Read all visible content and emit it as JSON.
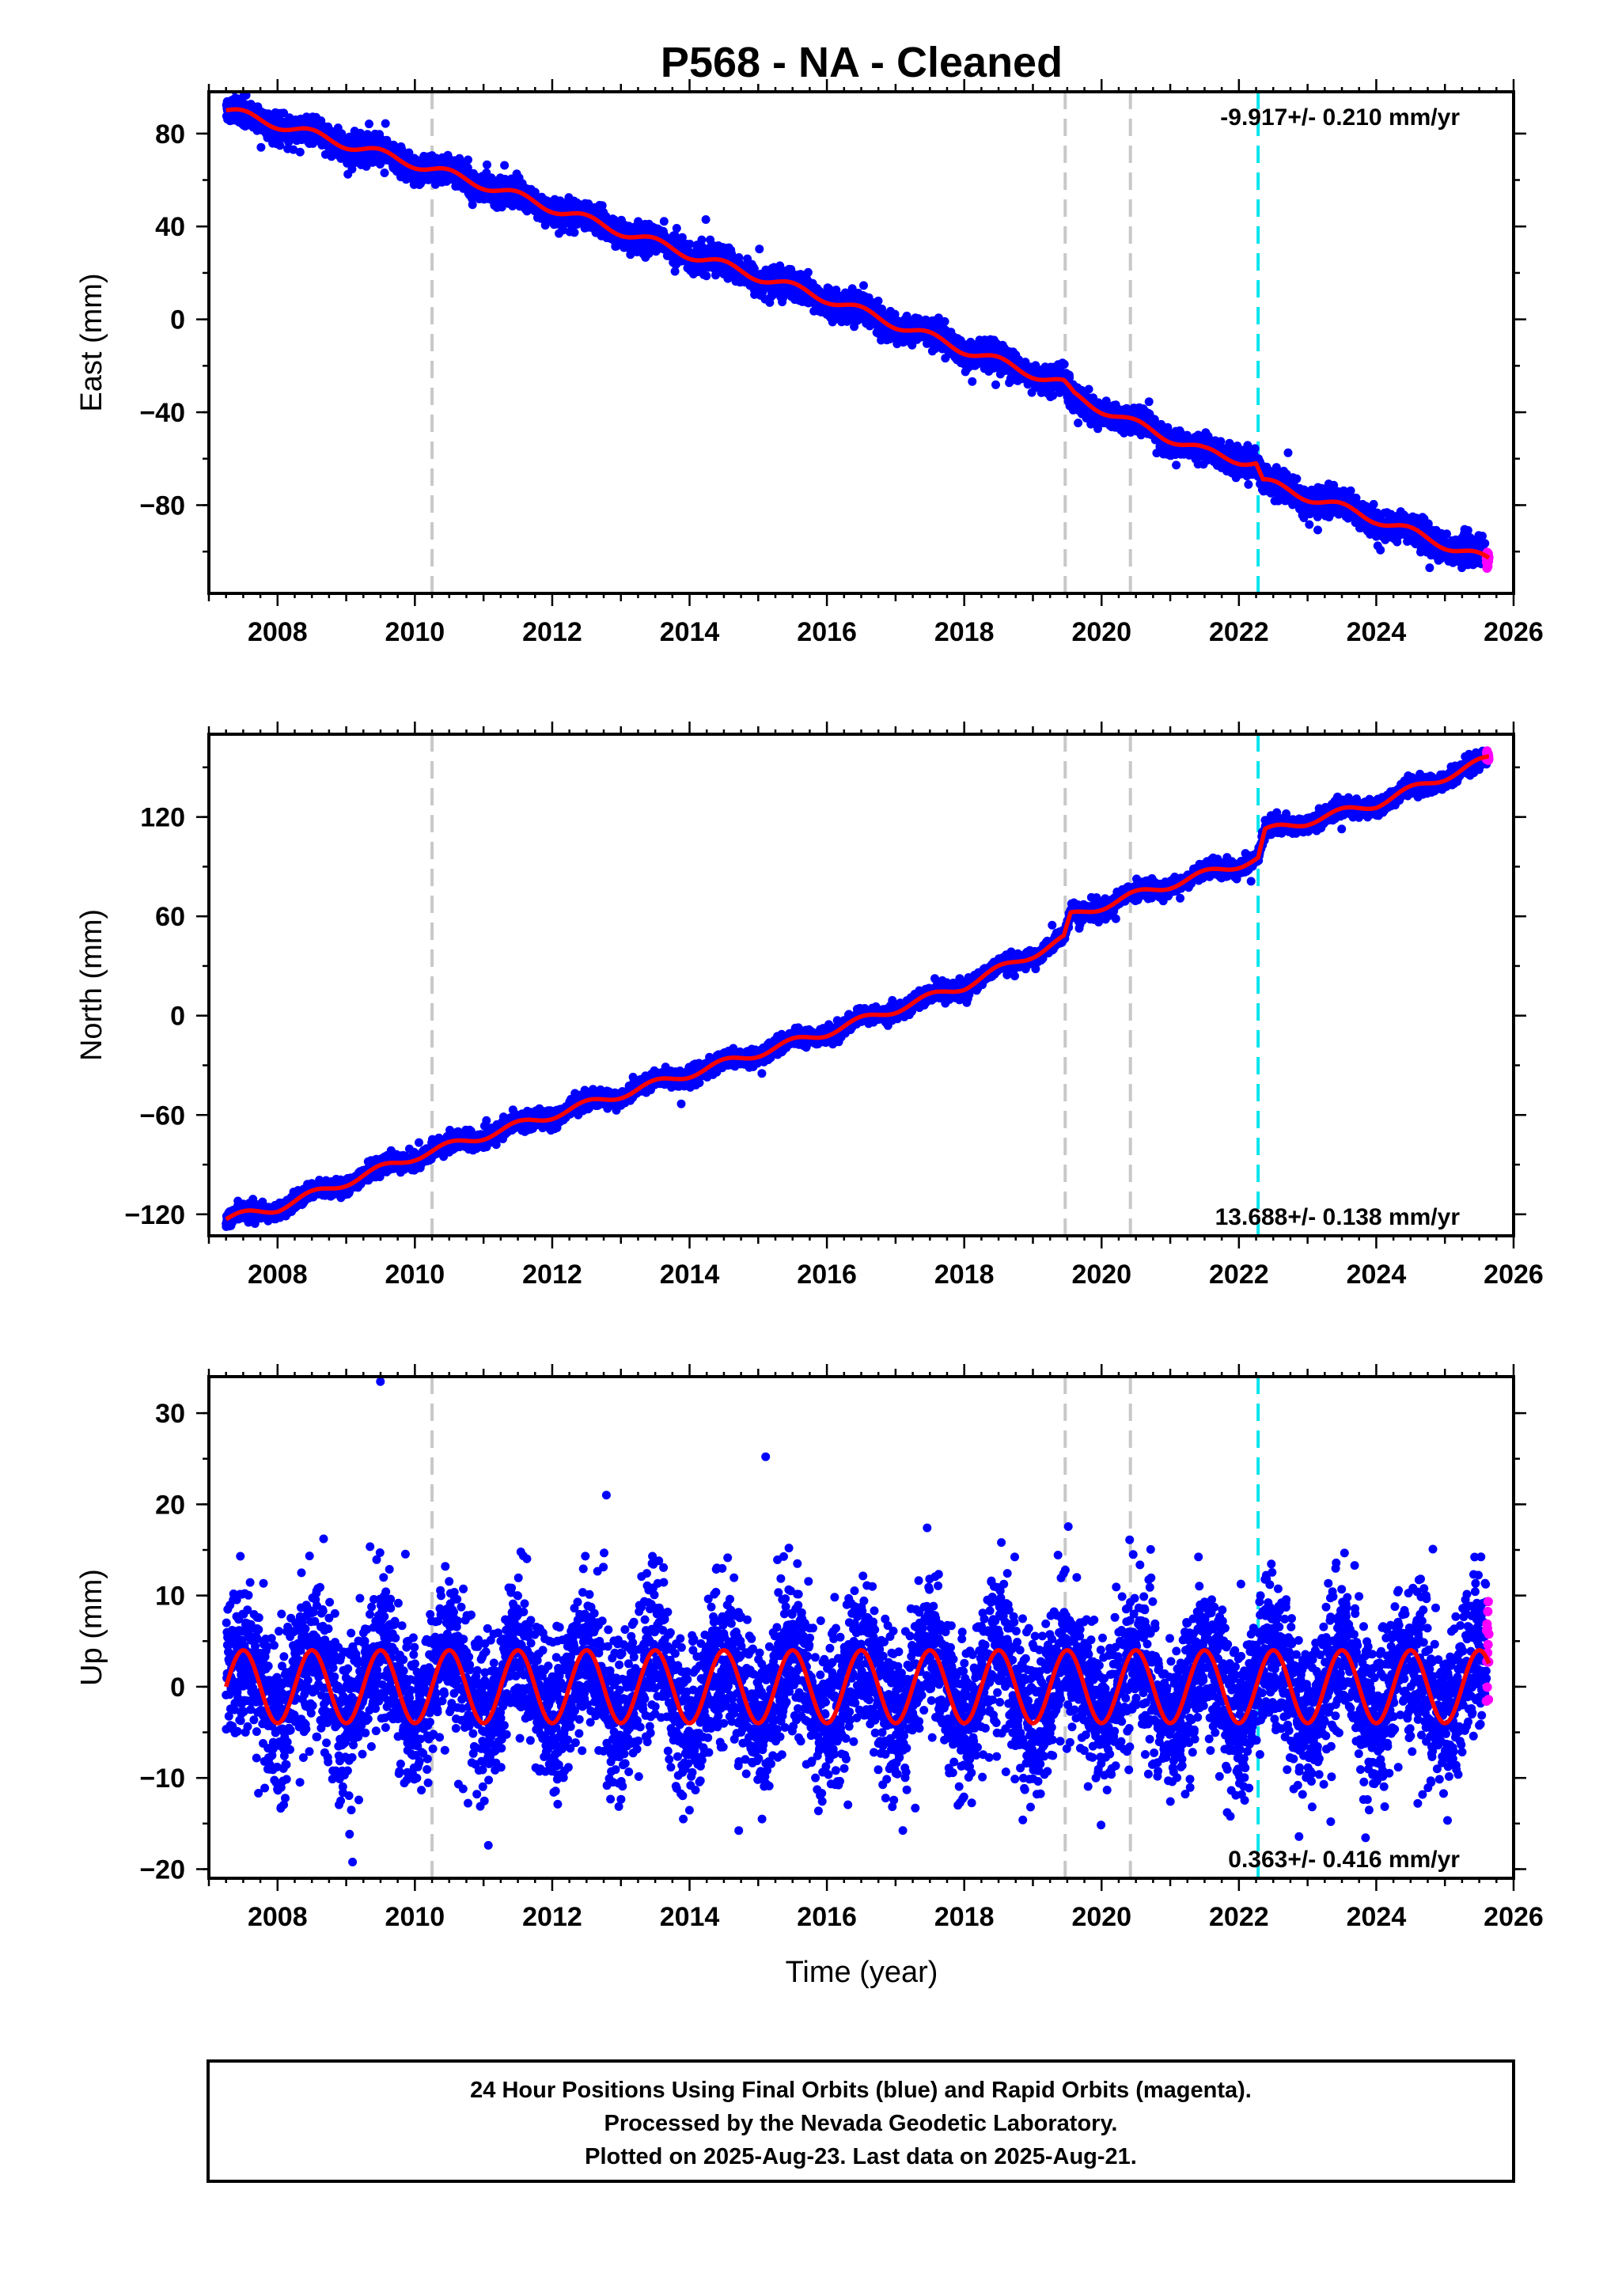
{
  "title": "P568  - NA - Cleaned",
  "xlabel": "Time (year)",
  "footer": {
    "line1": "24 Hour Positions Using Final Orbits (blue) and Rapid Orbits (magenta).",
    "line2": "Processed by the Nevada Geodetic Laboratory.",
    "line3": "Plotted on 2025-Aug-23. Last data on 2025-Aug-21."
  },
  "colors": {
    "final_orbits": "#0000ff",
    "rapid_orbits": "#ff00ff",
    "model": "#ff0000",
    "equipment_change": "#c8c8c8",
    "earthquake": "#00e5ee"
  },
  "chart_data": [
    {
      "type": "scatter",
      "component": "east",
      "ylabel": "East (mm)",
      "xlim": [
        2007.0,
        2026.0
      ],
      "ylim": [
        -118,
        98
      ],
      "x_ticks": [
        2008,
        2010,
        2012,
        2014,
        2016,
        2018,
        2020,
        2022,
        2024,
        2026
      ],
      "y_ticks": [
        80,
        40,
        0,
        -40,
        -80
      ],
      "y_tick_labels": [
        "80",
        "40",
        "0",
        "−40",
        "−80"
      ],
      "rate_label": "-9.917+/- 0.210 mm/yr",
      "rate_position": "top-right",
      "data_start": 2007.25,
      "data_end": 2025.64,
      "trend_points": [
        [
          2007.25,
          90
        ],
        [
          2008.0,
          84
        ],
        [
          2010.0,
          67
        ],
        [
          2011.0,
          58
        ],
        [
          2012.0,
          48
        ],
        [
          2014.0,
          28
        ],
        [
          2016.0,
          9
        ],
        [
          2018.0,
          -13
        ],
        [
          2019.45,
          -28
        ],
        [
          2019.6,
          -33
        ],
        [
          2020.4,
          -44
        ],
        [
          2021.5,
          -57
        ],
        [
          2022.25,
          -62
        ],
        [
          2022.35,
          -70
        ],
        [
          2024.0,
          -86
        ],
        [
          2025.64,
          -104
        ]
      ],
      "seasonal_amplitude": 2,
      "noise_std": 2.8,
      "vertical_lines": [
        {
          "x": 2010.25,
          "kind": "equipment"
        },
        {
          "x": 2019.47,
          "kind": "equipment"
        },
        {
          "x": 2020.42,
          "kind": "equipment"
        },
        {
          "x": 2022.28,
          "kind": "earthquake"
        }
      ]
    },
    {
      "type": "scatter",
      "component": "north",
      "ylabel": "North (mm)",
      "xlim": [
        2007.0,
        2026.0
      ],
      "ylim": [
        -133,
        170
      ],
      "x_ticks": [
        2008,
        2010,
        2012,
        2014,
        2016,
        2018,
        2020,
        2022,
        2024,
        2026
      ],
      "y_ticks": [
        120,
        60,
        0,
        -60,
        -120
      ],
      "y_tick_labels": [
        "120",
        "60",
        "0",
        "−60",
        "−120"
      ],
      "rate_label": "13.688+/- 0.138 mm/yr",
      "rate_position": "bottom-right",
      "data_start": 2007.25,
      "data_end": 2025.64,
      "trend_points": [
        [
          2007.25,
          -123
        ],
        [
          2008.0,
          -116
        ],
        [
          2010.0,
          -85
        ],
        [
          2012.0,
          -60
        ],
        [
          2014.0,
          -35
        ],
        [
          2016.0,
          -10
        ],
        [
          2018.0,
          18
        ],
        [
          2019.45,
          46
        ],
        [
          2019.55,
          60
        ],
        [
          2020.42,
          72
        ],
        [
          2022.28,
          95
        ],
        [
          2022.38,
          111
        ],
        [
          2024.0,
          128
        ],
        [
          2025.64,
          155
        ]
      ],
      "seasonal_amplitude": 2.5,
      "noise_std": 2.4,
      "vertical_lines": [
        {
          "x": 2010.25,
          "kind": "equipment"
        },
        {
          "x": 2019.47,
          "kind": "equipment"
        },
        {
          "x": 2020.42,
          "kind": "equipment"
        },
        {
          "x": 2022.28,
          "kind": "earthquake"
        }
      ]
    },
    {
      "type": "scatter",
      "component": "up",
      "ylabel": "Up (mm)",
      "xlim": [
        2007.0,
        2026.0
      ],
      "ylim": [
        -21,
        34
      ],
      "x_ticks": [
        2008,
        2010,
        2012,
        2014,
        2016,
        2018,
        2020,
        2022,
        2024,
        2026
      ],
      "y_ticks": [
        30,
        20,
        10,
        0,
        -10,
        -20
      ],
      "y_tick_labels": [
        "30",
        "20",
        "10",
        "0",
        "−10",
        "−20"
      ],
      "rate_label": "0.363+/- 0.416 mm/yr",
      "rate_position": "bottom-right",
      "data_start": 2007.25,
      "data_end": 2025.64,
      "trend_points": [
        [
          2007.25,
          0
        ],
        [
          2025.64,
          0
        ]
      ],
      "seasonal_amplitude": 4,
      "noise_std": 4.2,
      "vertical_lines": [
        {
          "x": 2010.25,
          "kind": "equipment"
        },
        {
          "x": 2019.47,
          "kind": "equipment"
        },
        {
          "x": 2020.42,
          "kind": "equipment"
        },
        {
          "x": 2022.28,
          "kind": "earthquake"
        }
      ]
    }
  ]
}
